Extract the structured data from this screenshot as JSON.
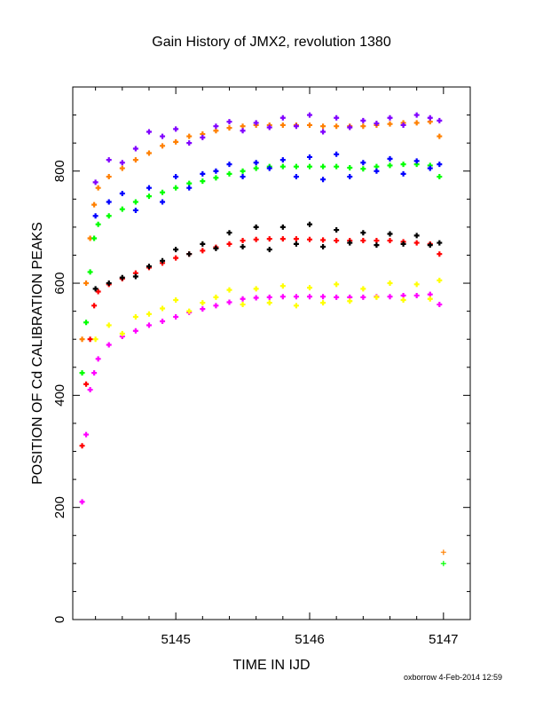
{
  "chart_data": {
    "type": "scatter",
    "title": "Gain History of JMX2, revolution 1380",
    "xlabel": "TIME IN IJD",
    "ylabel": "POSITION OF Cd CALIBRATION PEAKS",
    "xlim": [
      5144.23,
      5147.2
    ],
    "ylim": [
      0,
      950
    ],
    "x_ticks": [
      5145,
      5146,
      5147
    ],
    "x_tick_labels": [
      "5145",
      "5146",
      "5147"
    ],
    "y_ticks": [
      0,
      200,
      400,
      600,
      800
    ],
    "y_tick_labels": [
      "0",
      "200",
      "400",
      "600",
      "800"
    ],
    "grid": false,
    "legend": "none",
    "series": [
      {
        "color": "#ff8000",
        "x": [
          5144.3,
          5144.33,
          5144.36,
          5144.39,
          5144.42,
          5144.5,
          5144.6,
          5144.7,
          5144.8,
          5144.9,
          5145.0,
          5145.1,
          5145.2,
          5145.3,
          5145.4,
          5145.5,
          5145.6,
          5145.7,
          5145.8,
          5145.9,
          5146.0,
          5146.1,
          5146.2,
          5146.3,
          5146.4,
          5146.5,
          5146.6,
          5146.7,
          5146.8,
          5146.9,
          5146.97
        ],
        "y": [
          500,
          600,
          680,
          740,
          770,
          790,
          805,
          820,
          832,
          845,
          852,
          862,
          866,
          872,
          877,
          880,
          882,
          882,
          882,
          882,
          882,
          880,
          880,
          880,
          880,
          882,
          884,
          886,
          886,
          888,
          862
        ],
        "outliers": [
          {
            "x": 5147.0,
            "y": 120
          }
        ]
      },
      {
        "color": "#00ff00",
        "x": [
          5144.3,
          5144.33,
          5144.36,
          5144.39,
          5144.42,
          5144.5,
          5144.6,
          5144.7,
          5144.8,
          5144.9,
          5145.0,
          5145.1,
          5145.2,
          5145.3,
          5145.4,
          5145.5,
          5145.6,
          5145.7,
          5145.8,
          5145.9,
          5146.0,
          5146.1,
          5146.2,
          5146.3,
          5146.4,
          5146.5,
          5146.6,
          5146.7,
          5146.8,
          5146.9,
          5146.97
        ],
        "y": [
          440,
          530,
          620,
          680,
          705,
          720,
          732,
          745,
          755,
          762,
          770,
          778,
          782,
          788,
          795,
          800,
          805,
          808,
          808,
          808,
          808,
          808,
          808,
          806,
          804,
          808,
          810,
          812,
          812,
          810,
          790
        ],
        "outliers": [
          {
            "x": 5147.0,
            "y": 100
          }
        ]
      },
      {
        "color": "#ff0000",
        "x": [
          5144.3,
          5144.33,
          5144.36,
          5144.39,
          5144.42,
          5144.5,
          5144.6,
          5144.7,
          5144.8,
          5144.9,
          5145.0,
          5145.1,
          5145.2,
          5145.3,
          5145.4,
          5145.5,
          5145.6,
          5145.7,
          5145.8,
          5145.9,
          5146.0,
          5146.1,
          5146.2,
          5146.3,
          5146.4,
          5146.5,
          5146.6,
          5146.7,
          5146.8,
          5146.9,
          5146.97
        ],
        "y": [
          310,
          420,
          500,
          560,
          585,
          598,
          608,
          618,
          628,
          636,
          645,
          652,
          658,
          664,
          670,
          676,
          678,
          679,
          679,
          679,
          678,
          677,
          676,
          676,
          676,
          676,
          676,
          674,
          672,
          670,
          652
        ],
        "outliers": []
      },
      {
        "color": "#ff00ff",
        "x": [
          5144.3,
          5144.33,
          5144.36,
          5144.39,
          5144.42,
          5144.5,
          5144.6,
          5144.7,
          5144.8,
          5144.9,
          5145.0,
          5145.1,
          5145.2,
          5145.3,
          5145.4,
          5145.5,
          5145.6,
          5145.7,
          5145.8,
          5145.9,
          5146.0,
          5146.1,
          5146.2,
          5146.3,
          5146.4,
          5146.5,
          5146.6,
          5146.7,
          5146.8,
          5146.9,
          5146.97
        ],
        "y": [
          210,
          330,
          410,
          440,
          465,
          490,
          505,
          515,
          525,
          532,
          540,
          548,
          554,
          560,
          566,
          572,
          574,
          575,
          576,
          576,
          576,
          576,
          575,
          575,
          575,
          576,
          576,
          578,
          578,
          580,
          562
        ],
        "outliers": []
      },
      {
        "color": "#8000ff",
        "x": [
          5144.4,
          5144.5,
          5144.6,
          5144.7,
          5144.8,
          5144.9,
          5145.0,
          5145.1,
          5145.2,
          5145.3,
          5145.4,
          5145.5,
          5145.6,
          5145.7,
          5145.8,
          5145.9,
          5146.0,
          5146.1,
          5146.2,
          5146.3,
          5146.4,
          5146.5,
          5146.6,
          5146.7,
          5146.8,
          5146.9,
          5146.97
        ],
        "y": [
          780,
          820,
          815,
          840,
          870,
          862,
          875,
          850,
          860,
          880,
          888,
          872,
          886,
          878,
          895,
          880,
          900,
          870,
          895,
          878,
          890,
          885,
          895,
          882,
          900,
          895,
          890
        ],
        "outliers": []
      },
      {
        "color": "#0000ff",
        "x": [
          5144.4,
          5144.5,
          5144.6,
          5144.7,
          5144.8,
          5144.9,
          5145.0,
          5145.1,
          5145.2,
          5145.3,
          5145.4,
          5145.5,
          5145.6,
          5145.7,
          5145.8,
          5145.9,
          5146.0,
          5146.1,
          5146.2,
          5146.3,
          5146.4,
          5146.5,
          5146.6,
          5146.7,
          5146.8,
          5146.9,
          5146.97
        ],
        "y": [
          720,
          745,
          760,
          730,
          770,
          745,
          790,
          770,
          795,
          800,
          812,
          790,
          815,
          805,
          820,
          790,
          825,
          785,
          830,
          790,
          815,
          800,
          822,
          795,
          818,
          805,
          812
        ],
        "outliers": []
      },
      {
        "color": "#000000",
        "x": [
          5144.4,
          5144.5,
          5144.6,
          5144.7,
          5144.8,
          5144.9,
          5145.0,
          5145.1,
          5145.2,
          5145.3,
          5145.4,
          5145.5,
          5145.6,
          5145.7,
          5145.8,
          5145.9,
          5146.0,
          5146.1,
          5146.2,
          5146.3,
          5146.4,
          5146.5,
          5146.6,
          5146.7,
          5146.8,
          5146.9,
          5146.97
        ],
        "y": [
          590,
          600,
          610,
          612,
          630,
          640,
          660,
          652,
          670,
          662,
          690,
          665,
          700,
          660,
          700,
          670,
          705,
          665,
          695,
          672,
          690,
          668,
          688,
          670,
          685,
          668,
          672
        ],
        "outliers": []
      },
      {
        "color": "#ffff00",
        "x": [
          5144.4,
          5144.5,
          5144.6,
          5144.7,
          5144.8,
          5144.9,
          5145.0,
          5145.1,
          5145.2,
          5145.3,
          5145.4,
          5145.5,
          5145.6,
          5145.7,
          5145.8,
          5145.9,
          5146.0,
          5146.1,
          5146.2,
          5146.3,
          5146.4,
          5146.5,
          5146.6,
          5146.7,
          5146.8,
          5146.9,
          5146.97
        ],
        "y": [
          500,
          525,
          510,
          540,
          545,
          555,
          570,
          550,
          565,
          575,
          588,
          562,
          590,
          565,
          595,
          560,
          592,
          565,
          598,
          568,
          590,
          575,
          600,
          570,
          598,
          572,
          605
        ],
        "outliers": []
      }
    ]
  },
  "footer": {
    "credit": "oxborrow  4-Feb-2014 12:59"
  }
}
